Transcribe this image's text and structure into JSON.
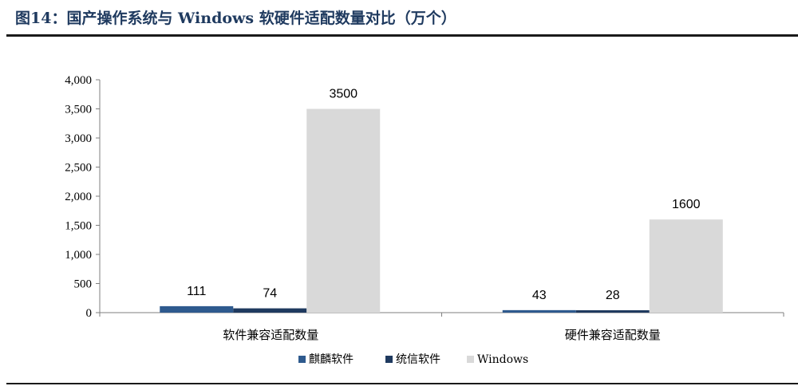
{
  "figure": {
    "title": "图14：国产操作系统与 Windows 软硬件适配数量对比（万个）"
  },
  "chart_data": {
    "type": "bar",
    "categories": [
      "软件兼容适配数量",
      "硬件兼容适配数量"
    ],
    "series": [
      {
        "name": "麒麟软件",
        "values": [
          111,
          43
        ],
        "color": "#2e5a8e"
      },
      {
        "name": "统信软件",
        "values": [
          74,
          28
        ],
        "color": "#1f3a5f"
      },
      {
        "name": "Windows",
        "values": [
          3500,
          1600
        ],
        "color": "#d9d9d9"
      }
    ],
    "ylim": [
      0,
      4000
    ],
    "yticks": [
      0,
      500,
      1000,
      1500,
      2000,
      2500,
      3000,
      3500,
      4000
    ],
    "ytick_labels": [
      "0",
      "500",
      "1,000",
      "1,500",
      "2,000",
      "2,500",
      "3,000",
      "3,500",
      "4,000"
    ],
    "data_labels": [
      [
        "111",
        "43"
      ],
      [
        "74",
        "28"
      ],
      [
        "3500",
        "1600"
      ]
    ],
    "grid": false,
    "legend_position": "bottom-center"
  }
}
